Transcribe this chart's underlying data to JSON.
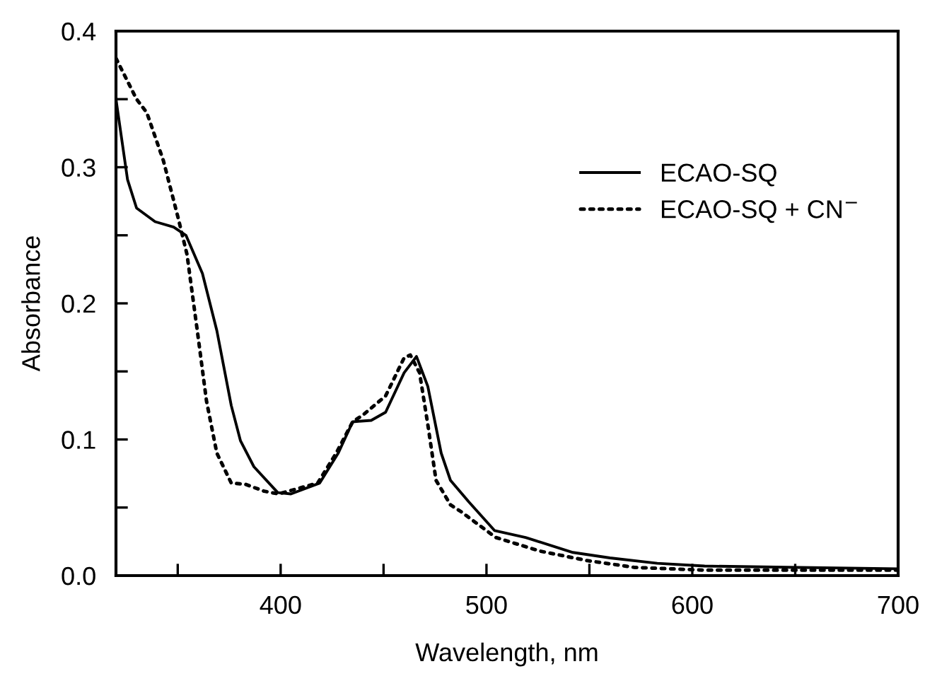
{
  "chart_data": {
    "type": "line",
    "xlabel": "Wavelength, nm",
    "ylabel": "Absorbance",
    "xlim": [
      320,
      700
    ],
    "ylim": [
      0,
      0.4
    ],
    "xticks": [
      {
        "value": 350,
        "label": null
      },
      400,
      {
        "value": 450,
        "label": null
      },
      500,
      {
        "value": 550,
        "label": null
      },
      600,
      {
        "value": 650,
        "label": null
      },
      700
    ],
    "yticks": [
      {
        "value": 0,
        "label": "0.0"
      },
      {
        "value": 0.05,
        "label": null
      },
      0.1,
      {
        "value": 0.15,
        "label": null
      },
      0.2,
      {
        "value": 0.25,
        "label": null
      },
      0.3,
      {
        "value": 0.35,
        "label": null
      },
      0.4
    ],
    "grid": false,
    "legend": "top right",
    "marker": "none",
    "series": [
      {
        "name": "ECAO-SQ",
        "color": "#000000",
        "line_style": "solid",
        "x": [
          320,
          325.6,
          330,
          339,
          348,
          354,
          362,
          369,
          376,
          380.5,
          387,
          398.6,
          405,
          419,
          428,
          435,
          444,
          451,
          460,
          466,
          471.5,
          478,
          482.5,
          491.5,
          504,
          519,
          542,
          560,
          583,
          606,
          652,
          700
        ],
        "values": [
          0.35,
          0.291,
          0.27,
          0.26,
          0.256,
          0.25,
          0.222,
          0.18,
          0.125,
          0.099,
          0.08,
          0.061,
          0.06,
          0.068,
          0.09,
          0.113,
          0.114,
          0.12,
          0.149,
          0.161,
          0.139,
          0.09,
          0.07,
          0.054,
          0.033,
          0.028,
          0.017,
          0.013,
          0.009,
          0.007,
          0.006,
          0.005
        ]
      },
      {
        "name": "ECAO-SQ + CN$^{−}$",
        "color": "#000000",
        "line_style": "dotted",
        "x": [
          320,
          330,
          335,
          343,
          350,
          354.5,
          359.5,
          364,
          369,
          376,
          383,
          392,
          399,
          418,
          427,
          435,
          440,
          451,
          460,
          463,
          467.5,
          471.5,
          475.5,
          482.5,
          487.6,
          504.5,
          526,
          549,
          572,
          606,
          700
        ],
        "values": [
          0.38,
          0.35,
          0.34,
          0.305,
          0.264,
          0.236,
          0.18,
          0.128,
          0.09,
          0.068,
          0.067,
          0.062,
          0.06,
          0.068,
          0.09,
          0.113,
          0.118,
          0.132,
          0.16,
          0.162,
          0.149,
          0.111,
          0.07,
          0.052,
          0.047,
          0.028,
          0.018,
          0.011,
          0.006,
          0.004,
          0.004
        ]
      }
    ]
  }
}
